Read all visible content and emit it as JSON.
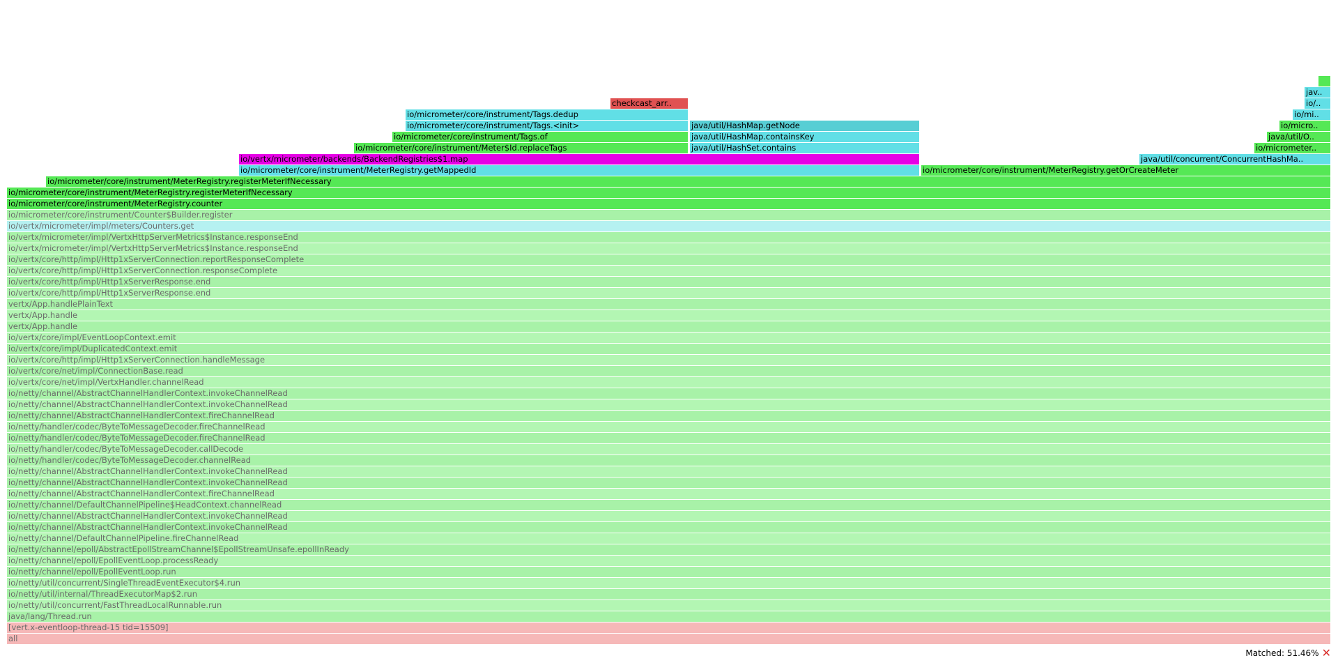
{
  "colors": {
    "green": "#55e855",
    "cyan": "#61dfe6",
    "cyan_dark": "#57ced4",
    "magenta": "#e600e6",
    "red": "#e05252",
    "dim_green_a": "#a8f2a8",
    "dim_green_b": "#b3f6b3",
    "dim_cyan": "#b5f1f1",
    "dim_red": "#f6b8b8"
  },
  "frames": [
    {
      "label": "all",
      "color": "dim_red",
      "dim": true
    },
    {
      "label": "[vert.x-eventloop-thread-15 tid=15509]",
      "color": "dim_red",
      "dim": true
    },
    {
      "label": "java/lang/Thread.run",
      "color": "dim_green_a",
      "dim": true
    },
    {
      "label": "io/netty/util/concurrent/FastThreadLocalRunnable.run",
      "color": "dim_green_b",
      "dim": true
    },
    {
      "label": "io/netty/util/internal/ThreadExecutorMap$2.run",
      "color": "dim_green_a",
      "dim": true
    },
    {
      "label": "io/netty/util/concurrent/SingleThreadEventExecutor$4.run",
      "color": "dim_green_b",
      "dim": true
    },
    {
      "label": "io/netty/channel/epoll/EpollEventLoop.run",
      "color": "dim_green_a",
      "dim": true
    },
    {
      "label": "io/netty/channel/epoll/EpollEventLoop.processReady",
      "color": "dim_green_b",
      "dim": true
    },
    {
      "label": "io/netty/channel/epoll/AbstractEpollStreamChannel$EpollStreamUnsafe.epollInReady",
      "color": "dim_green_a",
      "dim": true
    },
    {
      "label": "io/netty/channel/DefaultChannelPipeline.fireChannelRead",
      "color": "dim_green_b",
      "dim": true
    },
    {
      "label": "io/netty/channel/AbstractChannelHandlerContext.invokeChannelRead",
      "color": "dim_green_a",
      "dim": true
    },
    {
      "label": "io/netty/channel/AbstractChannelHandlerContext.invokeChannelRead",
      "color": "dim_green_b",
      "dim": true
    },
    {
      "label": "io/netty/channel/DefaultChannelPipeline$HeadContext.channelRead",
      "color": "dim_green_a",
      "dim": true
    },
    {
      "label": "io/netty/channel/AbstractChannelHandlerContext.fireChannelRead",
      "color": "dim_green_b",
      "dim": true
    },
    {
      "label": "io/netty/channel/AbstractChannelHandlerContext.invokeChannelRead",
      "color": "dim_green_a",
      "dim": true
    },
    {
      "label": "io/netty/channel/AbstractChannelHandlerContext.invokeChannelRead",
      "color": "dim_green_b",
      "dim": true
    },
    {
      "label": "io/netty/handler/codec/ByteToMessageDecoder.channelRead",
      "color": "dim_green_a",
      "dim": true
    },
    {
      "label": "io/netty/handler/codec/ByteToMessageDecoder.callDecode",
      "color": "dim_green_b",
      "dim": true
    },
    {
      "label": "io/netty/handler/codec/ByteToMessageDecoder.fireChannelRead",
      "color": "dim_green_a",
      "dim": true
    },
    {
      "label": "io/netty/handler/codec/ByteToMessageDecoder.fireChannelRead",
      "color": "dim_green_b",
      "dim": true
    },
    {
      "label": "io/netty/channel/AbstractChannelHandlerContext.fireChannelRead",
      "color": "dim_green_a",
      "dim": true
    },
    {
      "label": "io/netty/channel/AbstractChannelHandlerContext.invokeChannelRead",
      "color": "dim_green_b",
      "dim": true
    },
    {
      "label": "io/netty/channel/AbstractChannelHandlerContext.invokeChannelRead",
      "color": "dim_green_a",
      "dim": true
    },
    {
      "label": "io/vertx/core/net/impl/VertxHandler.channelRead",
      "color": "dim_green_b",
      "dim": true
    },
    {
      "label": "io/vertx/core/net/impl/ConnectionBase.read",
      "color": "dim_green_a",
      "dim": true
    },
    {
      "label": "io/vertx/core/http/impl/Http1xServerConnection.handleMessage",
      "color": "dim_green_b",
      "dim": true
    },
    {
      "label": "io/vertx/core/impl/DuplicatedContext.emit",
      "color": "dim_green_a",
      "dim": true
    },
    {
      "label": "io/vertx/core/impl/EventLoopContext.emit",
      "color": "dim_green_b",
      "dim": true
    },
    {
      "label": "vertx/App.handle",
      "color": "dim_green_a",
      "dim": true
    },
    {
      "label": "vertx/App.handle",
      "color": "dim_green_b",
      "dim": true
    },
    {
      "label": "vertx/App.handlePlainText",
      "color": "dim_green_a",
      "dim": true
    },
    {
      "label": "io/vertx/core/http/impl/Http1xServerResponse.end",
      "color": "dim_green_b",
      "dim": true
    },
    {
      "label": "io/vertx/core/http/impl/Http1xServerResponse.end",
      "color": "dim_green_a",
      "dim": true
    },
    {
      "label": "io/vertx/core/http/impl/Http1xServerConnection.responseComplete",
      "color": "dim_green_b",
      "dim": true
    },
    {
      "label": "io/vertx/core/http/impl/Http1xServerConnection.reportResponseComplete",
      "color": "dim_green_a",
      "dim": true
    },
    {
      "label": "io/vertx/micrometer/impl/VertxHttpServerMetrics$Instance.responseEnd",
      "color": "dim_green_b",
      "dim": true
    },
    {
      "label": "io/vertx/micrometer/impl/VertxHttpServerMetrics$Instance.responseEnd",
      "color": "dim_green_a",
      "dim": true
    },
    {
      "label": "io/vertx/micrometer/impl/meters/Counters.get",
      "color": "dim_cyan",
      "dim": true
    },
    {
      "label": "io/micrometer/core/instrument/Counter$Builder.register",
      "color": "dim_green_a",
      "dim": true
    },
    {
      "label": "io/micrometer/core/instrument/MeterRegistry.counter",
      "color": "green",
      "dim": false
    },
    {
      "label": "io/micrometer/core/instrument/MeterRegistry.registerMeterIfNecessary",
      "color": "green",
      "dim": false
    },
    {
      "label": "io/micrometer/core/instrument/MeterRegistry.registerMeterIfNecessary",
      "color": "green",
      "dim": false
    },
    {
      "label": "io/vertx/micrometer/backends/BackendRegistries$1.map",
      "color": "magenta",
      "dim": false
    },
    {
      "label": "io/micrometer/core/instrument/MeterRegistry.getMappedId",
      "color": "cyan",
      "dim": false
    },
    {
      "label": "io/micrometer/core/instrument/MeterRegistry.getOrCreateMeter",
      "color": "green",
      "dim": false
    },
    {
      "label": "io/micrometer/core/instrument/Meter$Id.replaceTags",
      "color": "green",
      "dim": false
    },
    {
      "label": "java/util/HashSet.contains",
      "color": "cyan",
      "dim": false
    },
    {
      "label": "java/util/concurrent/ConcurrentHashMa..",
      "color": "cyan",
      "dim": false
    },
    {
      "label": "io/micrometer..",
      "color": "green",
      "dim": false
    },
    {
      "label": "io/micrometer/core/instrument/Tags.of",
      "color": "green",
      "dim": false
    },
    {
      "label": "java/util/HashMap.containsKey",
      "color": "cyan",
      "dim": false
    },
    {
      "label": "java/util/O..",
      "color": "green",
      "dim": false
    },
    {
      "label": "io/micrometer/core/instrument/Tags.<init>",
      "color": "cyan",
      "dim": false
    },
    {
      "label": "java/util/HashMap.getNode",
      "color": "cyan_dark",
      "dim": false
    },
    {
      "label": "io/micro..",
      "color": "green",
      "dim": false
    },
    {
      "label": "io/micrometer/core/instrument/Tags.dedup",
      "color": "cyan",
      "dim": false
    },
    {
      "label": "io/mi..",
      "color": "cyan",
      "dim": false
    },
    {
      "label": "checkcast_arr..",
      "color": "red",
      "dim": false
    },
    {
      "label": "io/..",
      "color": "cyan",
      "dim": false
    },
    {
      "label": "jav..",
      "color": "cyan",
      "dim": false
    },
    {
      "label": "",
      "color": "green",
      "dim": false
    }
  ],
  "status": {
    "matched_text": "Matched: 51.46%",
    "close_symbol": "✕"
  }
}
